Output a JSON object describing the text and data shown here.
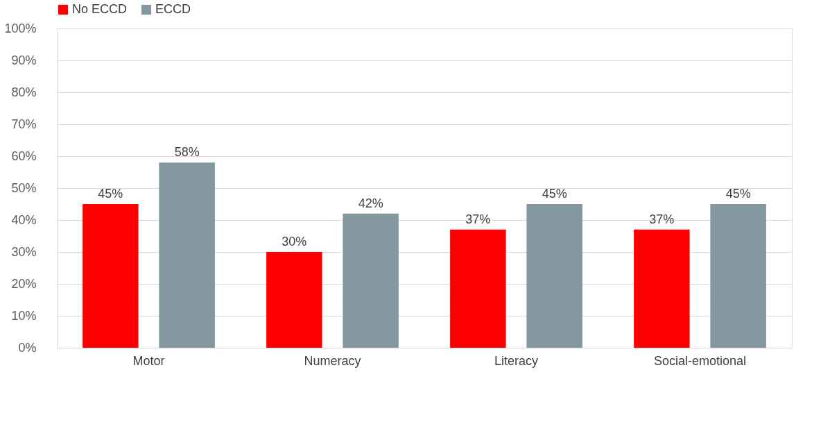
{
  "chart_data": {
    "type": "bar",
    "categories": [
      "Motor",
      "Numeracy",
      "Literacy",
      "Social-emotional"
    ],
    "series": [
      {
        "name": "No ECCD",
        "color": "#ff0000",
        "values": [
          45,
          30,
          37,
          37
        ],
        "value_labels": [
          "45%",
          "30%",
          "37%",
          "37%"
        ]
      },
      {
        "name": "ECCD",
        "color": "#8497a0",
        "values": [
          58,
          42,
          45,
          45
        ],
        "value_labels": [
          "58%",
          "42%",
          "45%",
          "45%"
        ]
      }
    ],
    "ylim": [
      0,
      100
    ],
    "yticks": [
      {
        "value": 0,
        "label": "0%"
      },
      {
        "value": 10,
        "label": "10%"
      },
      {
        "value": 20,
        "label": "20%"
      },
      {
        "value": 30,
        "label": "30%"
      },
      {
        "value": 40,
        "label": "40%"
      },
      {
        "value": 50,
        "label": "50%"
      },
      {
        "value": 60,
        "label": "60%"
      },
      {
        "value": 70,
        "label": "70%"
      },
      {
        "value": 80,
        "label": "80%"
      },
      {
        "value": 90,
        "label": "90%"
      },
      {
        "value": 100,
        "label": "100%"
      }
    ],
    "grid": "y",
    "legend": "top"
  }
}
